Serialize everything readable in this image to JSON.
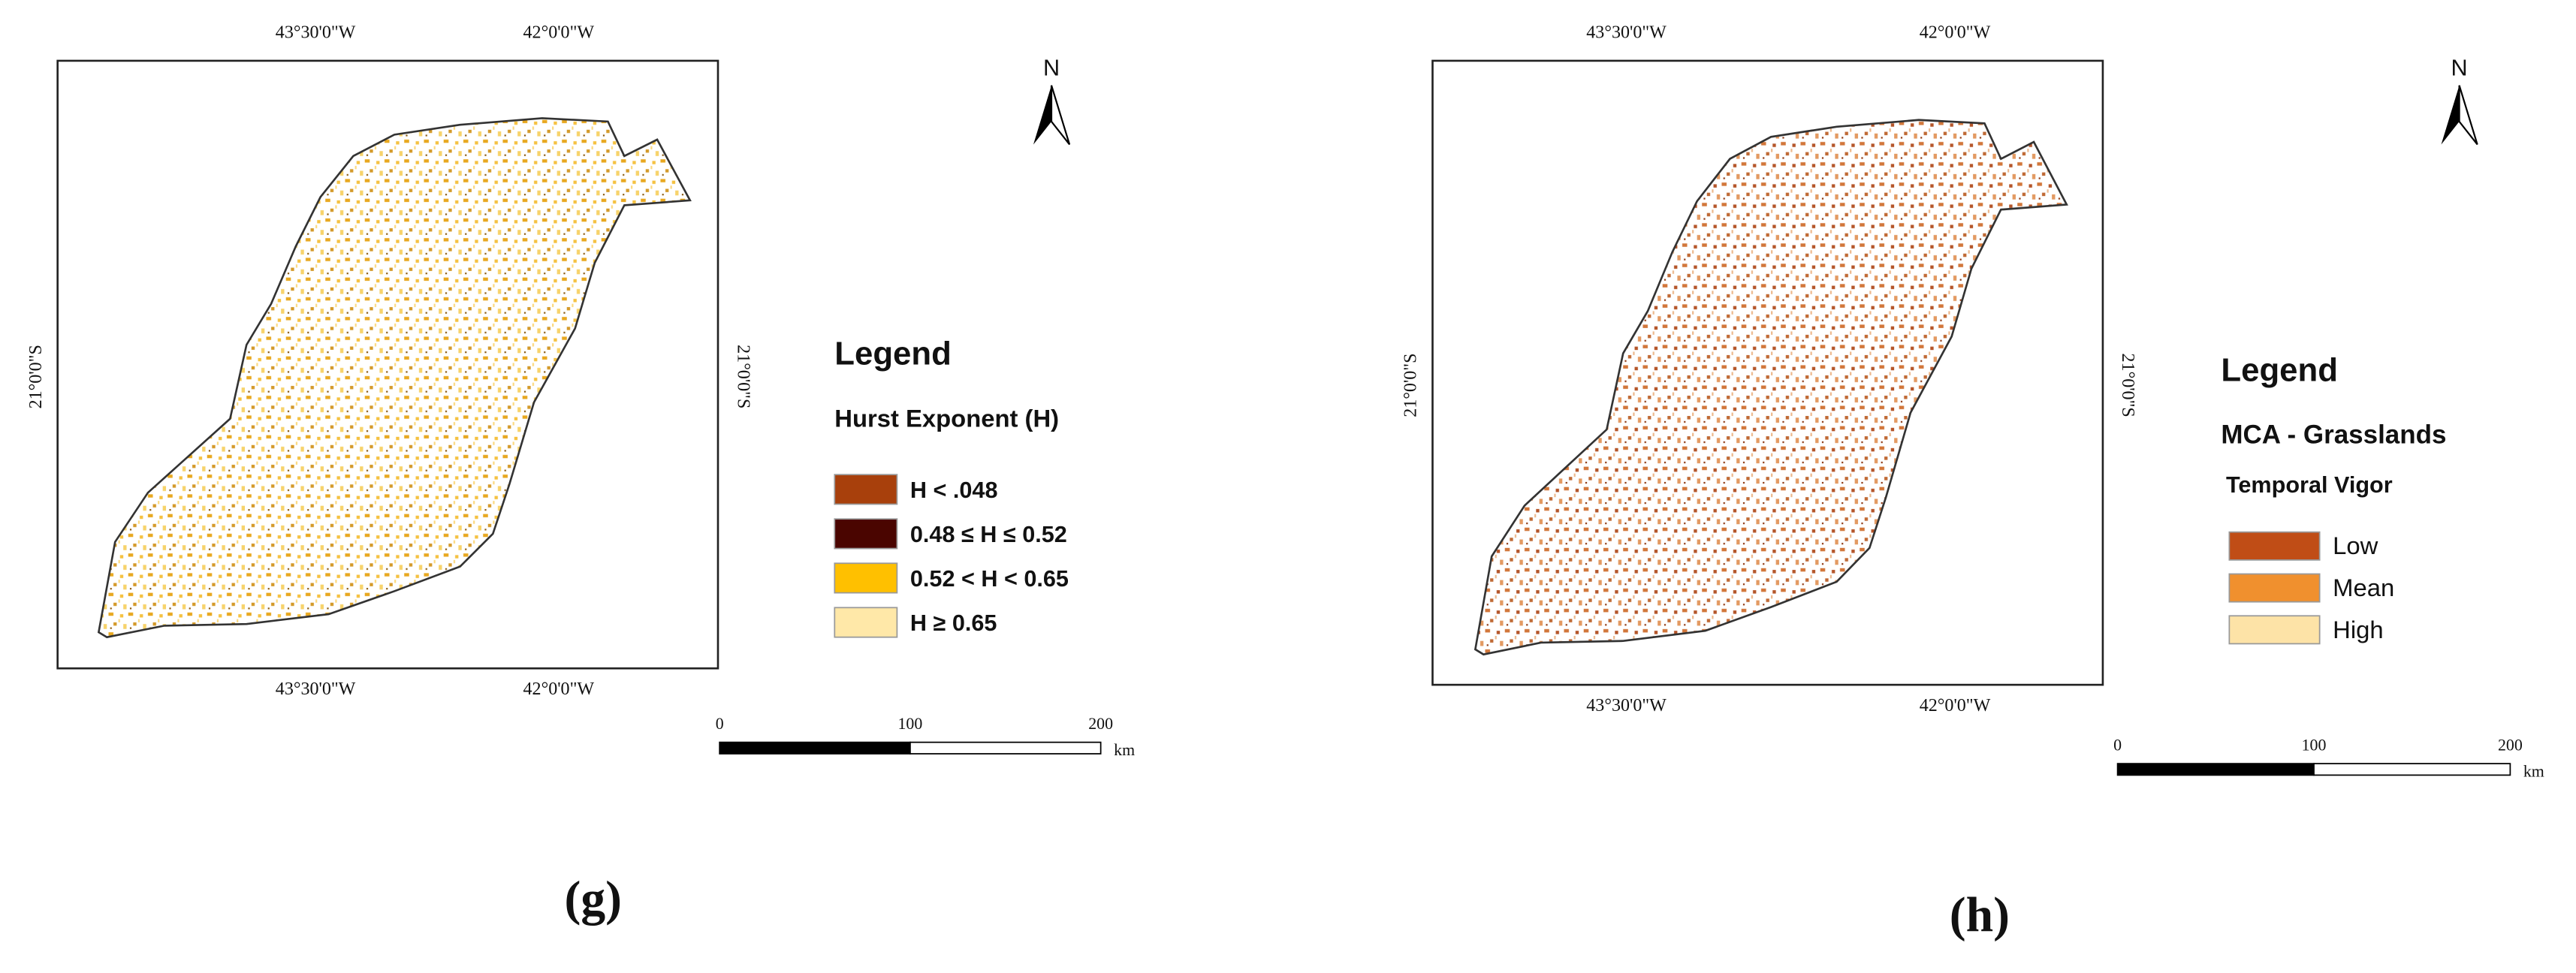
{
  "panels": [
    {
      "caption": "(g)",
      "top_labels": [
        "43°30'0\"W",
        "42°0'0\"W"
      ],
      "bottom_labels": [
        "43°30'0\"W",
        "42°0'0\"W"
      ],
      "left_label": "21°0'0\"S",
      "right_label": "21°0'0\"S",
      "north": "N",
      "legend": {
        "title": "Legend",
        "heading": "Hurst Exponent (H)",
        "items": [
          {
            "label": "H < .048",
            "color": "#a8400c"
          },
          {
            "label": "0.48 ≤ H ≤ 0.52",
            "color": "#4a0500"
          },
          {
            "label": "0.52 < H < 0.65",
            "color": "#ffc000"
          },
          {
            "label": "H ≥ 0.65",
            "color": "#ffe8a8"
          }
        ]
      },
      "scale": {
        "ticks": [
          "0",
          "100",
          "200"
        ],
        "unit": "km"
      }
    },
    {
      "caption": "(h)",
      "top_labels": [
        "43°30'0\"W",
        "42°0'0\"W"
      ],
      "bottom_labels": [
        "43°30'0\"W",
        "42°0'0\"W"
      ],
      "left_label": "21°0'0\"S",
      "right_label": "21°0'0\"S",
      "north": "N",
      "legend": {
        "title": "Legend",
        "heading": "MCA - Grasslands",
        "subheading": "Temporal Vigor",
        "items": [
          {
            "label": "Low",
            "color": "#c04d16"
          },
          {
            "label": "Mean",
            "color": "#f0902e"
          },
          {
            "label": "High",
            "color": "#fde3a7"
          }
        ]
      },
      "scale": {
        "ticks": [
          "0",
          "100",
          "200"
        ],
        "unit": "km"
      }
    }
  ]
}
